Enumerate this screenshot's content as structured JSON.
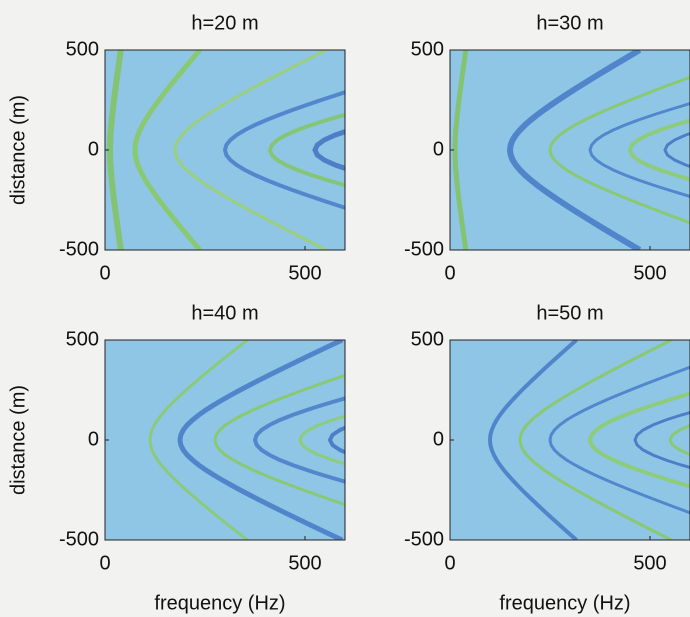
{
  "chart_data": [
    {
      "type": "heatmap",
      "title": "h=20 m",
      "ylabel": "distance (m)",
      "xlim": [
        0,
        600
      ],
      "xticks": [
        0,
        500
      ],
      "ylim": [
        -500,
        500
      ],
      "yticks": [
        -500,
        0,
        500
      ]
    },
    {
      "type": "heatmap",
      "title": "h=30 m",
      "xlim": [
        0,
        600
      ],
      "xticks": [
        0,
        500
      ],
      "ylim": [
        -500,
        500
      ],
      "yticks": [
        -500,
        0,
        500
      ]
    },
    {
      "type": "heatmap",
      "title": "h=40 m",
      "ylabel": "distance (m)",
      "xlabel": "frequency (Hz)",
      "xlim": [
        0,
        600
      ],
      "xticks": [
        0,
        500
      ],
      "ylim": [
        -500,
        500
      ],
      "yticks": [
        -500,
        0,
        500
      ]
    },
    {
      "type": "heatmap",
      "title": "h=50 m",
      "xlabel": "frequency (Hz)",
      "xlim": [
        0,
        600
      ],
      "xticks": [
        0,
        500
      ],
      "ylim": [
        -500,
        500
      ],
      "yticks": [
        -500,
        0,
        500
      ]
    }
  ]
}
